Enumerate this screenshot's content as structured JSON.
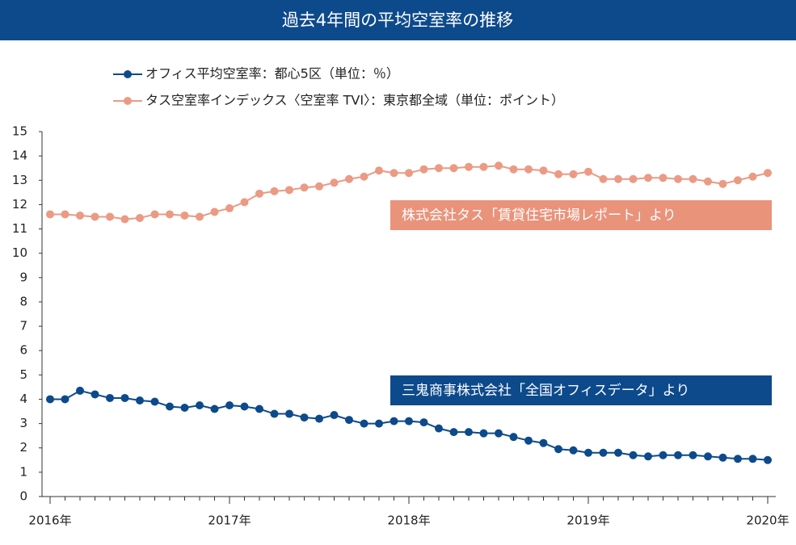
{
  "chart_data": {
    "type": "line",
    "title": "過去4年間の平均空室率の推移",
    "categories": [
      "2016年",
      null,
      null,
      null,
      null,
      null,
      null,
      null,
      null,
      null,
      null,
      null,
      "2017年",
      null,
      null,
      null,
      null,
      null,
      null,
      null,
      null,
      null,
      null,
      null,
      "2018年",
      null,
      null,
      null,
      null,
      null,
      null,
      null,
      null,
      null,
      null,
      null,
      "2019年",
      null,
      null,
      null,
      null,
      null,
      null,
      null,
      null,
      null,
      null,
      null,
      "2020年"
    ],
    "series": [
      {
        "name": "オフィス平均空室率：都心5区（単位：％）",
        "color": "#0d4a8b",
        "values": [
          4.0,
          4.0,
          4.35,
          4.2,
          4.05,
          4.05,
          3.95,
          3.9,
          3.7,
          3.65,
          3.75,
          3.6,
          3.75,
          3.7,
          3.6,
          3.4,
          3.4,
          3.25,
          3.2,
          3.35,
          3.15,
          3.0,
          3.0,
          3.1,
          3.1,
          3.05,
          2.8,
          2.65,
          2.65,
          2.6,
          2.6,
          2.45,
          2.3,
          2.2,
          1.95,
          1.9,
          1.8,
          1.8,
          1.8,
          1.7,
          1.65,
          1.7,
          1.7,
          1.7,
          1.65,
          1.6,
          1.55,
          1.55,
          1.5
        ]
      },
      {
        "name": "タス空室率インデックス〈空室率 TVI〉：東京都全域（単位：ポイント）",
        "color": "#eb9a84",
        "values": [
          11.6,
          11.6,
          11.55,
          11.5,
          11.5,
          11.4,
          11.45,
          11.6,
          11.6,
          11.55,
          11.5,
          11.7,
          11.85,
          12.1,
          12.45,
          12.55,
          12.6,
          12.7,
          12.75,
          12.9,
          13.05,
          13.15,
          13.4,
          13.3,
          13.3,
          13.45,
          13.5,
          13.5,
          13.55,
          13.55,
          13.6,
          13.45,
          13.45,
          13.4,
          13.25,
          13.25,
          13.35,
          13.05,
          13.05,
          13.05,
          13.1,
          13.1,
          13.05,
          13.05,
          12.95,
          12.85,
          13.0,
          13.15,
          13.3
        ]
      }
    ],
    "annotations": [
      {
        "text": "株式会社タス「賃貸住宅市場レポート」より",
        "color": "#e9937b"
      },
      {
        "text": "三鬼商事株式会社「全国オフィスデータ」より",
        "color": "#0d4a8b"
      }
    ],
    "ylim": [
      0,
      15
    ],
    "yticks": [
      0,
      1,
      2,
      3,
      4,
      5,
      6,
      7,
      8,
      9,
      10,
      11,
      12,
      13,
      14,
      15
    ],
    "grid": false
  }
}
